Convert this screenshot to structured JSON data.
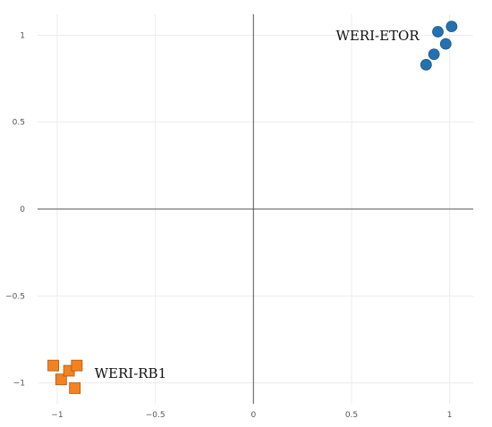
{
  "chart_data": {
    "type": "scatter",
    "title": "",
    "xlabel": "",
    "ylabel": "",
    "xlim": [
      -1.1,
      1.12
    ],
    "ylim": [
      -1.12,
      1.12
    ],
    "xticks": [
      -1,
      -0.5,
      0,
      0.5,
      1
    ],
    "xtick_labels": [
      "−1",
      "−0.5",
      "0",
      "0.5",
      "1"
    ],
    "yticks": [
      1,
      0.5,
      0,
      -0.5,
      -1
    ],
    "ytick_labels": [
      "1",
      "0.5",
      "0",
      "−0.5",
      "−1"
    ],
    "grid": true,
    "series": [
      {
        "marker": "circle",
        "color": "#2471b0",
        "points": [
          [
            0.88,
            0.83
          ],
          [
            0.92,
            0.89
          ],
          [
            0.94,
            1.02
          ],
          [
            0.98,
            0.95
          ],
          [
            1.01,
            1.05
          ]
        ]
      },
      {
        "marker": "square",
        "color": "#f58220",
        "points": [
          [
            -1.02,
            -0.9
          ],
          [
            -0.98,
            -0.98
          ],
          [
            -0.94,
            -0.93
          ],
          [
            -0.9,
            -0.9
          ],
          [
            -0.91,
            -1.03
          ]
        ]
      }
    ],
    "annotations": [
      {
        "text": "WERI-ETOR",
        "x": 0.42,
        "y": 0.97
      },
      {
        "text": "WERI-RB1",
        "x": -0.81,
        "y": -0.97
      }
    ]
  }
}
